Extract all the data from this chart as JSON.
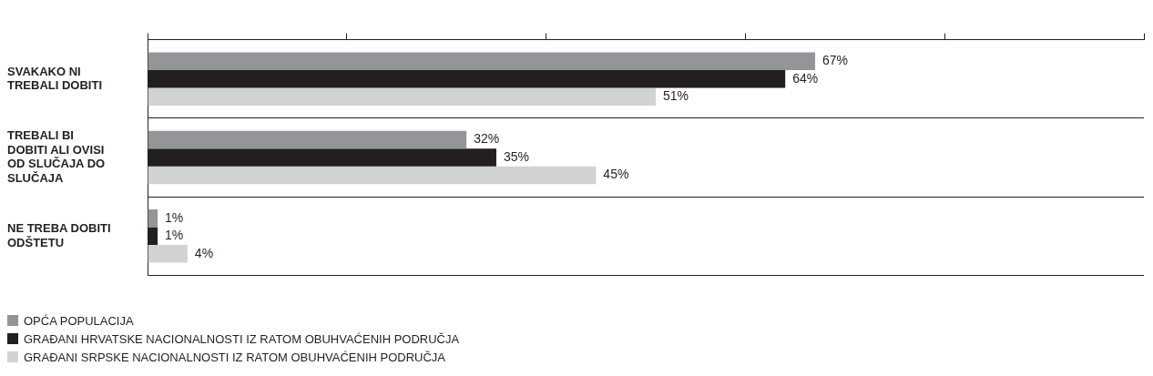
{
  "chart_data": {
    "type": "bar",
    "orientation": "horizontal",
    "categories": [
      "SVAKAKO NI TREBALI DOBITI",
      "TREBALI BI DOBITI ALI OVISI OD SLUČAJA DO SLUČAJA",
      "NE TREBA DOBITI ODŠTETU"
    ],
    "series": [
      {
        "name": "OPĆA POPULACIJA",
        "color": "#939598",
        "values": [
          67,
          32,
          1
        ],
        "value_labels": [
          "67%",
          "32%",
          "1%"
        ]
      },
      {
        "name": "GRAĐANI HRVATSKE NACIONALNOSTI IZ RATOM OBUHVAĆENIH PODRUČJA",
        "color": "#231f20",
        "values": [
          64,
          35,
          1
        ],
        "value_labels": [
          "64%",
          "35%",
          "1%"
        ]
      },
      {
        "name": "GRAĐANI SRPSKE NACIONALNOSTI IZ RATOM OBUHVAĆENIH PODRUČJA",
        "color": "#d1d2d4",
        "values": [
          51,
          45,
          4
        ],
        "value_labels": [
          "51%",
          "45%",
          "4%"
        ]
      }
    ],
    "xlim": [
      0,
      100
    ],
    "xticks": [
      {
        "value": 0,
        "label": null
      },
      {
        "value": 20,
        "label": null
      },
      {
        "value": 40,
        "label": null
      },
      {
        "value": 60,
        "label": null
      },
      {
        "value": 80,
        "label": null
      },
      {
        "value": 100,
        "label": null
      }
    ],
    "tick_labels": "y",
    "grid": "y",
    "legend": "bottom left"
  }
}
